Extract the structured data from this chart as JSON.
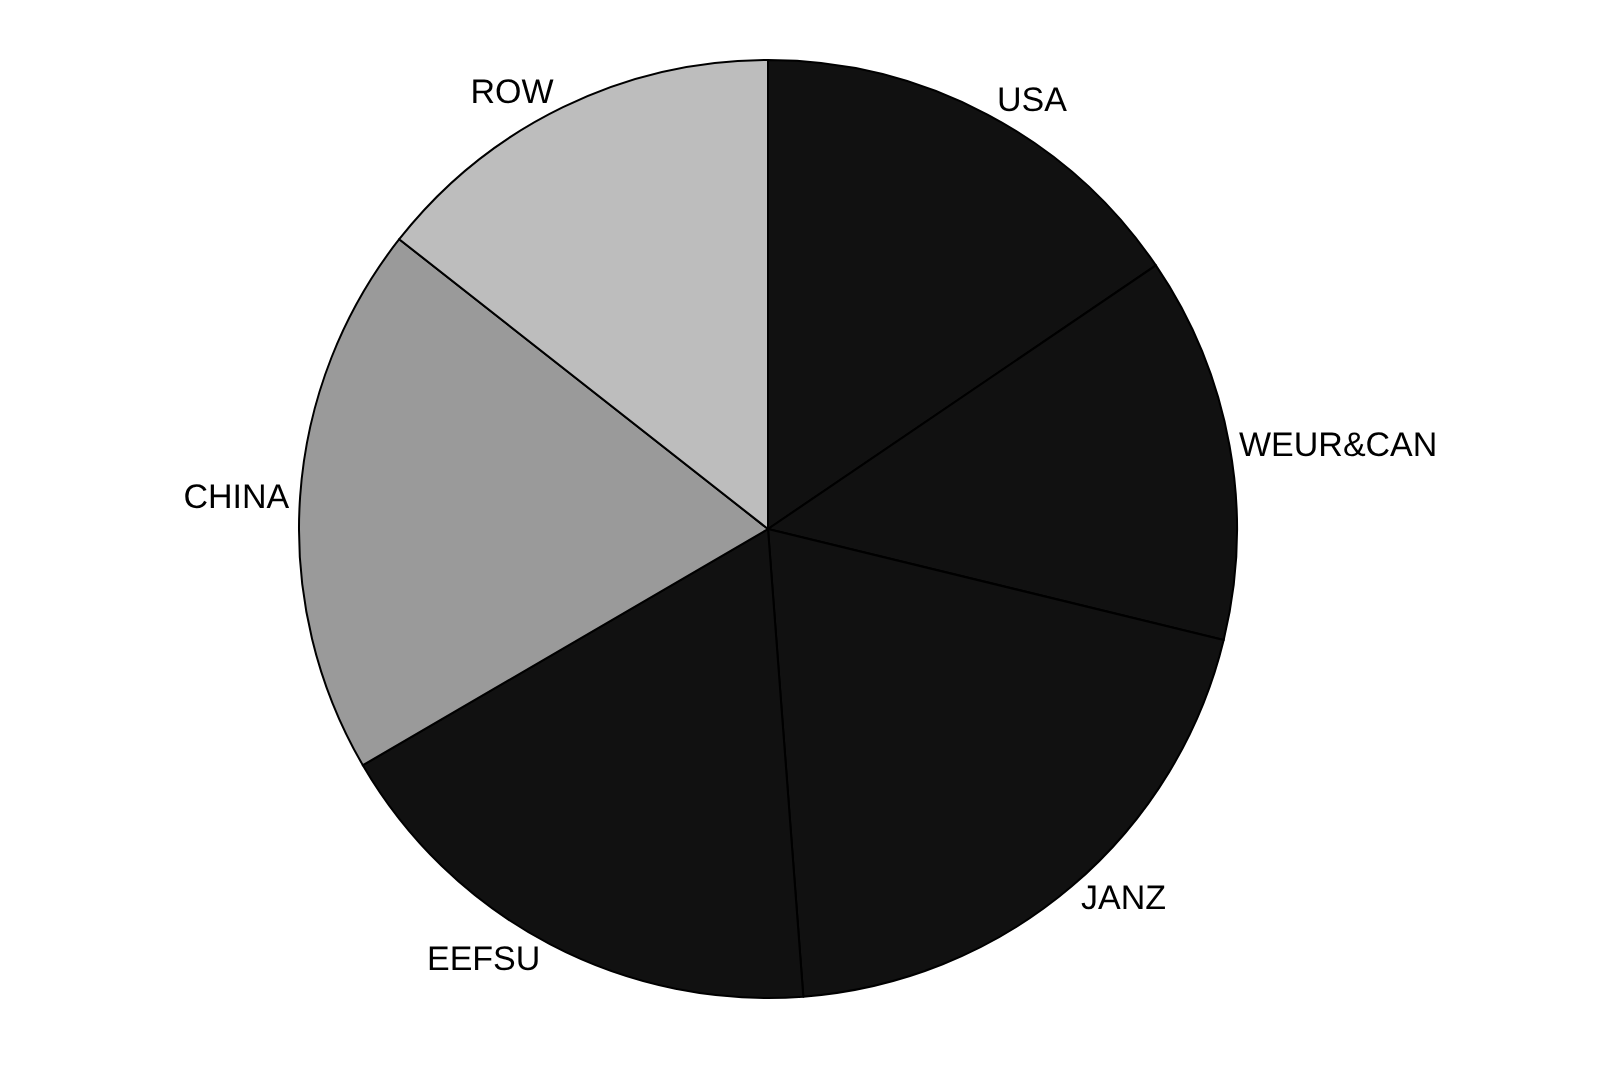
{
  "chart_data": {
    "type": "pie",
    "categories": [
      "USA",
      "WEUR&CAN",
      "JANZ",
      "EEFSU",
      "CHINA",
      "ROW"
    ],
    "values": [
      15.5,
      13.3,
      20.0,
      17.8,
      19.0,
      14.4
    ],
    "colors": [
      "#111111",
      "#111111",
      "#111111",
      "#111111",
      "#9a9a9a",
      "#bdbdbd"
    ]
  }
}
